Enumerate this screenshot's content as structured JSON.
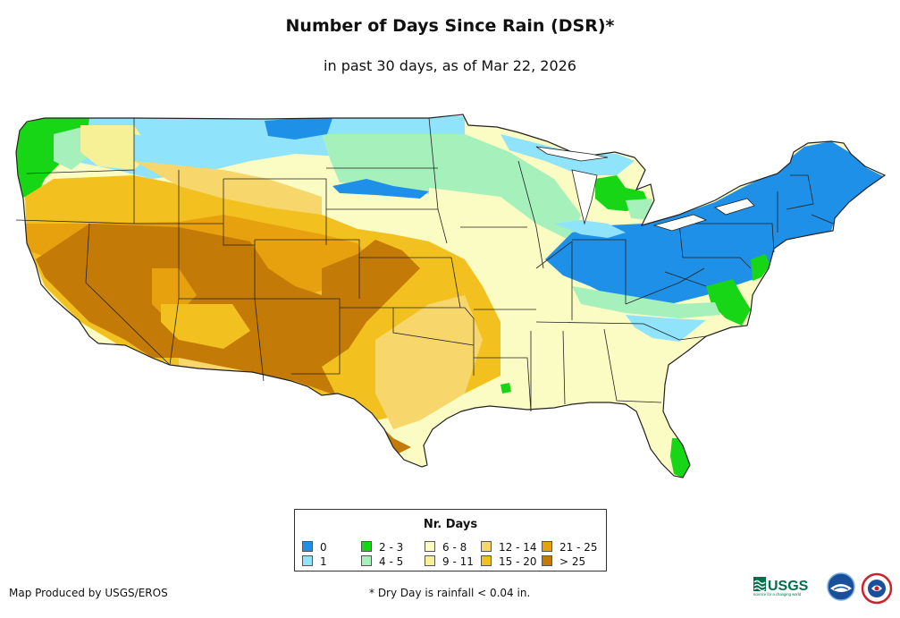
{
  "header": {
    "title": "Number of Days Since Rain (DSR)*",
    "subtitle": "in past 30 days, as of Mar 22, 2026"
  },
  "legend": {
    "title": "Nr. Days",
    "items": [
      {
        "label": "0",
        "color": "#1e90e8"
      },
      {
        "label": "1",
        "color": "#8fe3fb"
      },
      {
        "label": "2 - 3",
        "color": "#16d616"
      },
      {
        "label": "4 - 5",
        "color": "#a6f0bc"
      },
      {
        "label": "6 - 8",
        "color": "#fbfbc4"
      },
      {
        "label": "9 - 11",
        "color": "#f6f196"
      },
      {
        "label": "12 - 14",
        "color": "#f7d66b"
      },
      {
        "label": "15 - 20",
        "color": "#f3c11f"
      },
      {
        "label": "21 - 25",
        "color": "#e7a10f"
      },
      {
        "label": "> 25",
        "color": "#c47a06"
      }
    ]
  },
  "footer": {
    "credit": "Map Produced by USGS/EROS",
    "note": "* Dry Day is rainfall < 0.04 in."
  },
  "logos": {
    "usgs_text": "USGS",
    "usgs_tagline": "science for a changing world"
  }
}
